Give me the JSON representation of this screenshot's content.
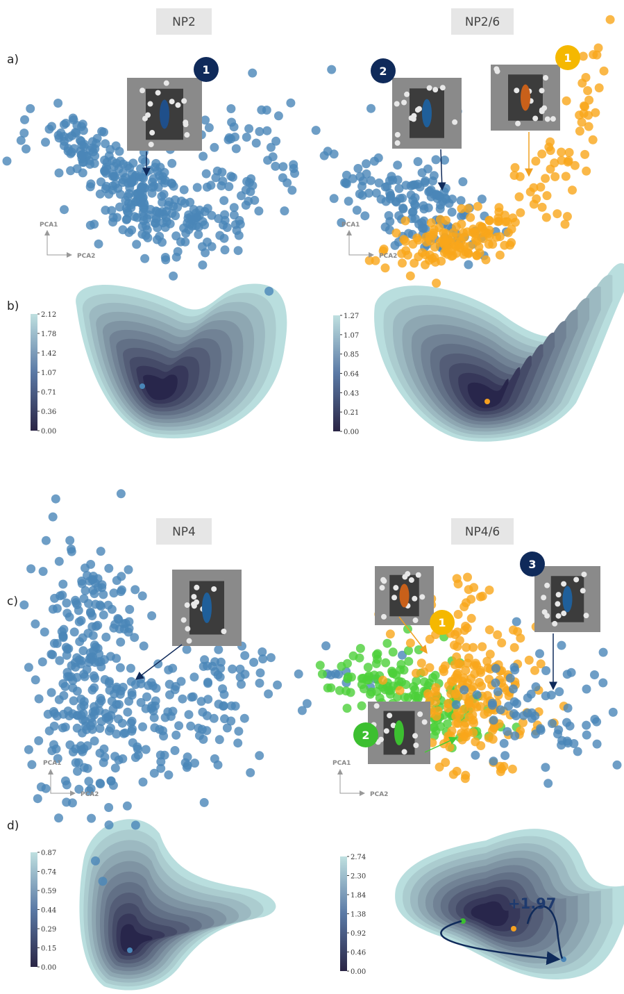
{
  "titles": [
    "NP2",
    "NP2/6",
    "NP4",
    "NP4/6"
  ],
  "panel_labels": [
    "a)",
    "b)",
    "c)",
    "d)"
  ],
  "axes": {
    "pca1": "PCA1",
    "pca2": "PCA2"
  },
  "badges": [
    "1",
    "2",
    "1",
    "3",
    "1",
    "2"
  ],
  "colorbars": [
    [
      "2.12",
      "1.78",
      "1.42",
      "1.07",
      "0.71",
      "0.36",
      "0.00"
    ],
    [
      "1.27",
      "1.07",
      "0.85",
      "0.64",
      "0.43",
      "0.21",
      "0.00"
    ],
    [
      "0.87",
      "0.74",
      "0.59",
      "0.44",
      "0.29",
      "0.15",
      "0.00"
    ],
    [
      "2.74",
      "2.30",
      "1.84",
      "1.38",
      "0.92",
      "0.46",
      "0.00"
    ]
  ],
  "annotation": "+1.97"
}
